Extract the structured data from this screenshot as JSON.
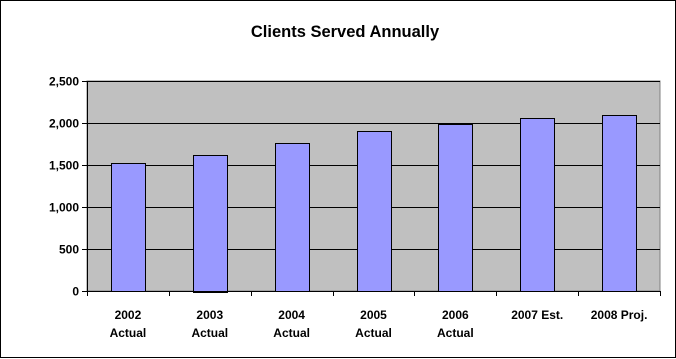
{
  "chart_data": {
    "type": "bar",
    "title": "Clients Served Annually",
    "xlabel": "",
    "ylabel": "",
    "categories": [
      [
        "2002",
        "Actual"
      ],
      [
        "2003",
        "Actual"
      ],
      [
        "2004",
        "Actual"
      ],
      [
        "2005",
        "Actual"
      ],
      [
        "2006",
        "Actual"
      ],
      [
        "2007 Est."
      ],
      [
        "2008 Proj."
      ]
    ],
    "values": [
      1525,
      1625,
      1760,
      1900,
      1990,
      2060,
      2100
    ],
    "ylim": [
      0,
      2500
    ],
    "yticks": [
      0,
      500,
      1000,
      1500,
      2000,
      2500
    ],
    "ytick_labels": [
      "0",
      "500",
      "1,000",
      "1,500",
      "2,000",
      "2,500"
    ],
    "grid": true,
    "legend": "none",
    "colors": {
      "bar_fill": "#9999FF",
      "bar_stroke": "#000000",
      "plot_background": "#C0C0C0",
      "gridline": "#000000"
    }
  }
}
